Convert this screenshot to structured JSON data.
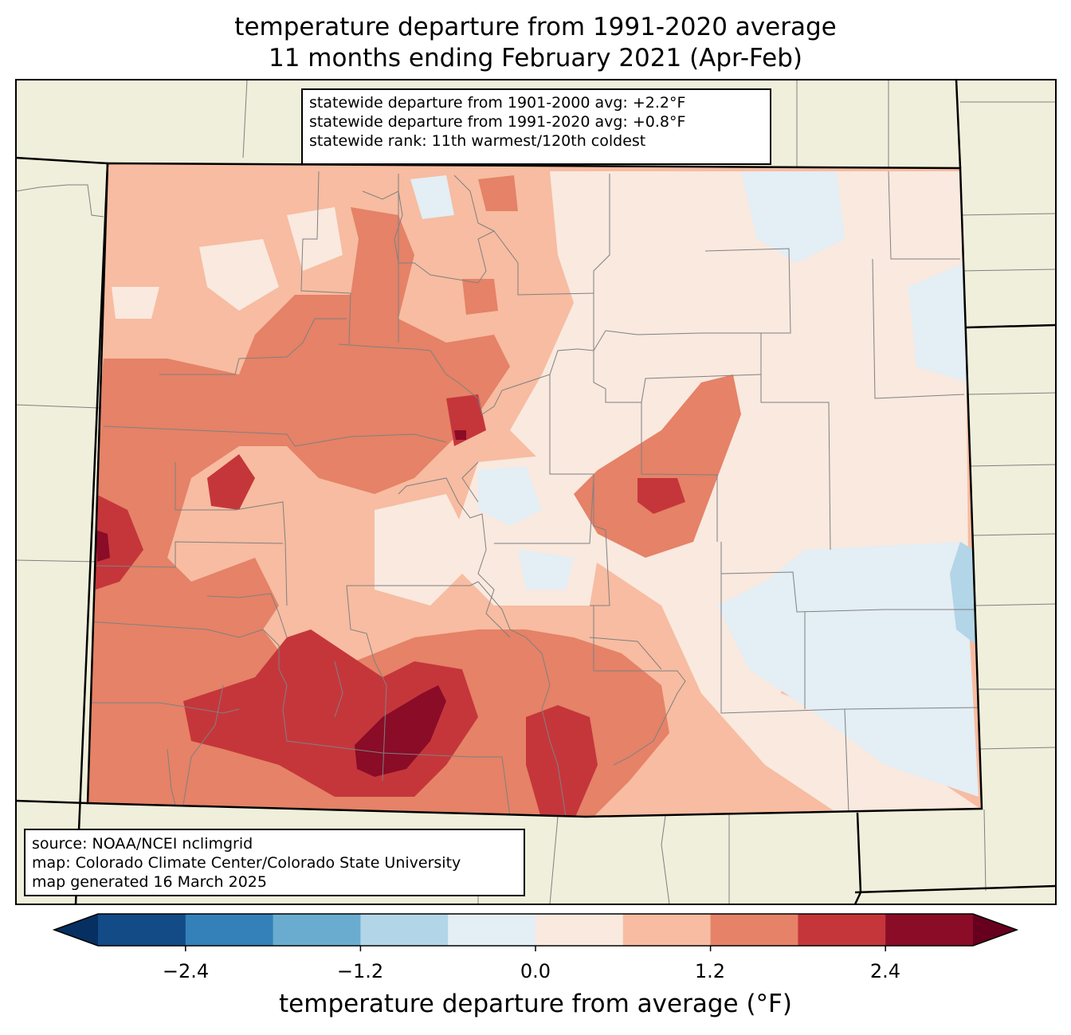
{
  "title": {
    "line1": "temperature departure from 1991-2020 average",
    "line2": "11 months ending February 2021 (Apr-Feb)"
  },
  "stats": {
    "line1": "statewide departure from 1901-2000 avg: +2.2°F",
    "line2": "statewide departure from 1991-2020 avg: +0.8°F",
    "line3": "statewide rank: 11th warmest/120th coldest"
  },
  "source": {
    "line1": "source: NOAA/NCEI nclimgrid",
    "line2": "map: Colorado Climate Center/Colorado State University",
    "line3": "map generated 16 March 2025"
  },
  "colorbar": {
    "label": "temperature departure from average (°F)",
    "ticks": [
      "−2.4",
      "−1.2",
      "0.0",
      "1.2",
      "2.4"
    ],
    "bins": [
      {
        "min": -3.0,
        "max": -2.4,
        "color": "#134b87"
      },
      {
        "min": -2.4,
        "max": -1.8,
        "color": "#3480b9"
      },
      {
        "min": -1.8,
        "max": -1.2,
        "color": "#6aacd0"
      },
      {
        "min": -1.2,
        "max": -0.6,
        "color": "#b2d5e7"
      },
      {
        "min": -0.6,
        "max": 0.0,
        "color": "#e3eef5"
      },
      {
        "min": 0.0,
        "max": 0.6,
        "color": "#f9e9df"
      },
      {
        "min": 0.6,
        "max": 1.2,
        "color": "#f7bca1"
      },
      {
        "min": 1.2,
        "max": 1.8,
        "color": "#e58267"
      },
      {
        "min": 1.8,
        "max": 2.4,
        "color": "#c5363b"
      },
      {
        "min": 2.4,
        "max": 3.0,
        "color": "#8a0c27"
      }
    ],
    "under_color": "#053061",
    "over_color": "#67001f"
  },
  "colors": {
    "land": "#efefdb",
    "county_lines": "#808080",
    "state_lines": "#000000"
  }
}
